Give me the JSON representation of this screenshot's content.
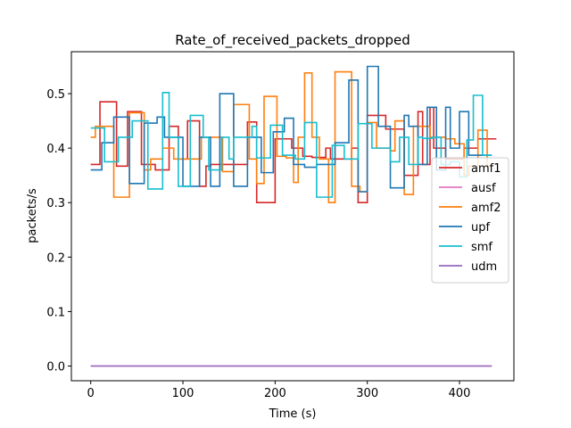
{
  "chart_data": {
    "type": "line",
    "step": true,
    "title": "Rate_of_received_packets_dropped",
    "xlabel": "Time (s)",
    "ylabel": "packets/s",
    "xlim": [
      -21,
      459
    ],
    "ylim": [
      -0.027,
      0.577
    ],
    "xticks": [
      0,
      100,
      200,
      300,
      400
    ],
    "yticks": [
      0.0,
      0.1,
      0.2,
      0.3,
      0.4,
      0.5
    ],
    "ytick_labels": [
      "0.0",
      "0.1",
      "0.2",
      "0.3",
      "0.4",
      "0.5"
    ],
    "grid": false,
    "legend": {
      "position": "center-right"
    },
    "series": [
      {
        "name": "amf1",
        "color": "#d62728",
        "x": [
          0,
          10,
          28,
          40,
          55,
          70,
          85,
          95,
          105,
          118,
          125,
          130,
          135,
          150,
          170,
          180,
          188,
          200,
          218,
          230,
          240,
          255,
          260,
          275,
          283,
          290,
          300,
          315,
          320,
          340,
          345,
          355,
          360,
          368,
          372,
          385,
          400,
          405,
          420,
          440
        ],
        "values": [
          0.37,
          0.485,
          0.367,
          0.467,
          0.37,
          0.36,
          0.44,
          0.38,
          0.45,
          0.33,
          0.367,
          0.37,
          0.37,
          0.37,
          0.448,
          0.3,
          0.3,
          0.417,
          0.4,
          0.385,
          0.383,
          0.4,
          0.38,
          0.38,
          0.4,
          0.3,
          0.46,
          0.46,
          0.435,
          0.35,
          0.35,
          0.467,
          0.37,
          0.475,
          0.4,
          0.38,
          0.38,
          0.4,
          0.417,
          0.417
        ]
      },
      {
        "name": "ausf",
        "color": "#e377c2",
        "x": [
          0,
          435
        ],
        "values": [
          0.0,
          0.0
        ]
      },
      {
        "name": "amf2",
        "color": "#ff7f0e",
        "x": [
          0,
          5,
          25,
          42,
          58,
          65,
          70,
          78,
          90,
          105,
          120,
          128,
          143,
          155,
          172,
          180,
          188,
          202,
          212,
          220,
          225,
          232,
          240,
          248,
          258,
          265,
          283,
          292,
          300,
          310,
          325,
          330,
          340,
          350,
          368,
          375,
          385,
          395,
          405,
          410,
          420,
          430,
          435
        ],
        "values": [
          0.42,
          0.44,
          0.31,
          0.465,
          0.36,
          0.38,
          0.38,
          0.4,
          0.38,
          0.38,
          0.42,
          0.42,
          0.357,
          0.48,
          0.38,
          0.335,
          0.495,
          0.385,
          0.382,
          0.337,
          0.42,
          0.538,
          0.42,
          0.38,
          0.3,
          0.54,
          0.33,
          0.32,
          0.447,
          0.4,
          0.395,
          0.45,
          0.315,
          0.44,
          0.42,
          0.42,
          0.417,
          0.408,
          0.35,
          0.367,
          0.433,
          0.367,
          0.367
        ]
      },
      {
        "name": "upf",
        "color": "#1f77b4",
        "x": [
          0,
          12,
          25,
          42,
          58,
          72,
          80,
          100,
          118,
          130,
          140,
          155,
          170,
          185,
          198,
          210,
          220,
          232,
          245,
          265,
          280,
          290,
          300,
          312,
          325,
          340,
          345,
          355,
          365,
          375,
          385,
          390,
          400,
          410,
          435
        ],
        "values": [
          0.36,
          0.41,
          0.457,
          0.335,
          0.446,
          0.457,
          0.42,
          0.33,
          0.42,
          0.33,
          0.5,
          0.33,
          0.42,
          0.355,
          0.43,
          0.455,
          0.37,
          0.365,
          0.37,
          0.41,
          0.525,
          0.32,
          0.55,
          0.44,
          0.327,
          0.46,
          0.44,
          0.37,
          0.475,
          0.36,
          0.475,
          0.4,
          0.467,
          0.387,
          0.387
        ]
      },
      {
        "name": "smf",
        "color": "#17becf",
        "x": [
          0,
          15,
          30,
          45,
          62,
          78,
          85,
          95,
          108,
          122,
          128,
          142,
          150,
          155,
          175,
          180,
          195,
          208,
          222,
          232,
          245,
          252,
          262,
          275,
          290,
          305,
          325,
          335,
          345,
          355,
          360,
          370,
          380,
          390,
          400,
          408,
          415,
          425,
          435
        ],
        "values": [
          0.437,
          0.375,
          0.42,
          0.45,
          0.325,
          0.502,
          0.42,
          0.33,
          0.46,
          0.42,
          0.36,
          0.42,
          0.38,
          0.42,
          0.44,
          0.382,
          0.442,
          0.387,
          0.38,
          0.447,
          0.31,
          0.31,
          0.405,
          0.38,
          0.445,
          0.4,
          0.375,
          0.42,
          0.37,
          0.42,
          0.418,
          0.42,
          0.37,
          0.375,
          0.347,
          0.415,
          0.497,
          0.387,
          0.387
        ]
      },
      {
        "name": "udm",
        "color": "#9467bd",
        "x": [
          0,
          435
        ],
        "values": [
          0.0,
          0.0
        ]
      }
    ]
  }
}
